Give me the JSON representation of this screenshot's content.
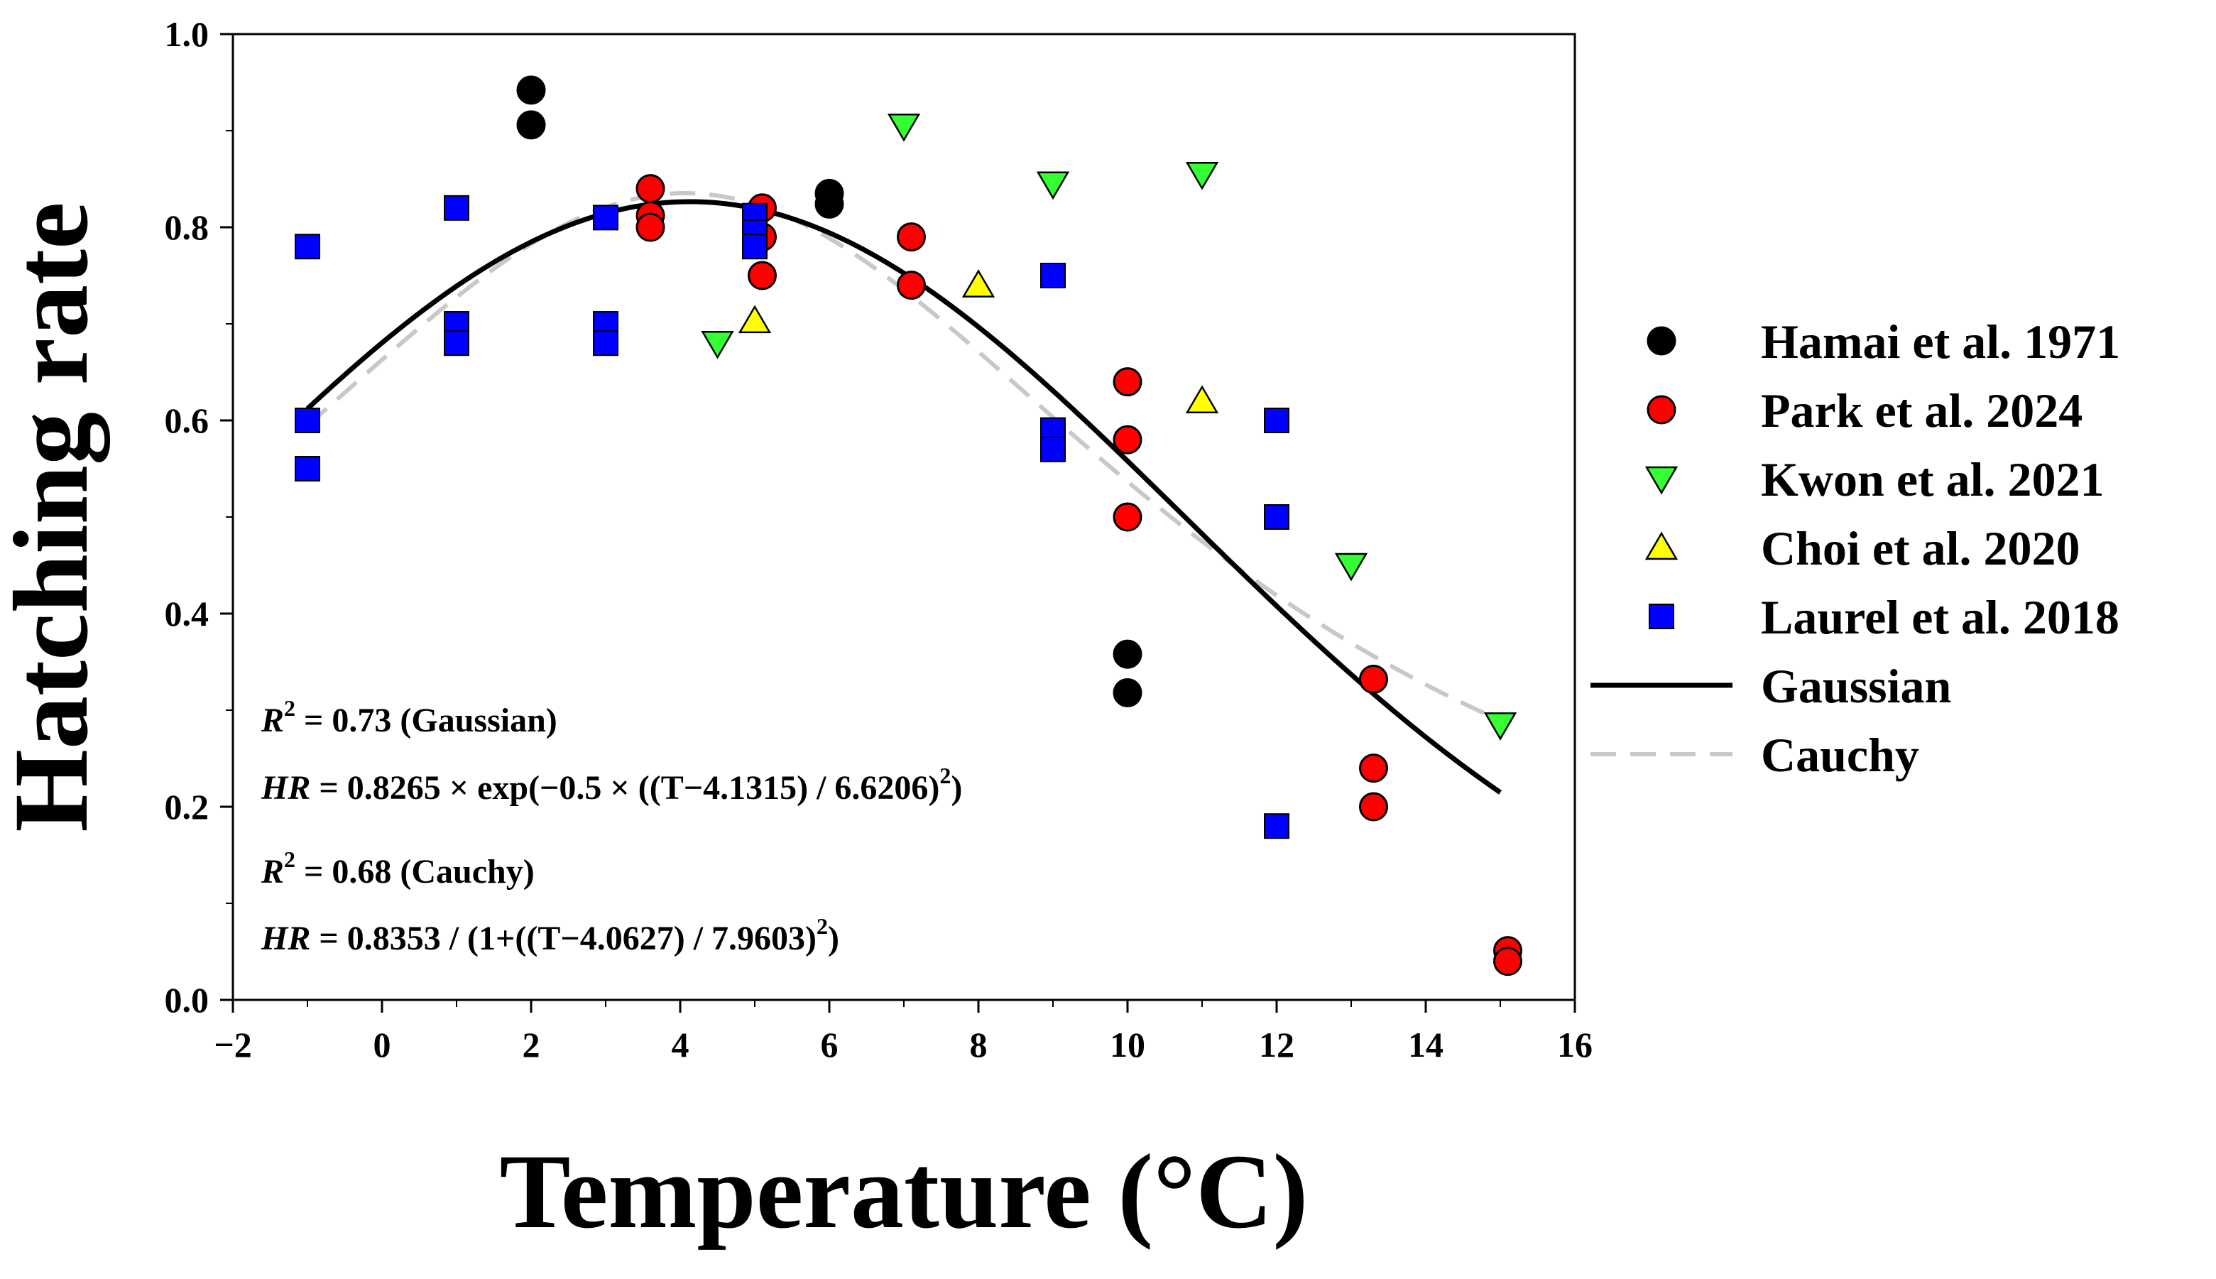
{
  "chart_data": {
    "type": "scatter",
    "xlabel": "Temperature (°C)",
    "ylabel": "Hatching rate",
    "xlim": [
      -2,
      16
    ],
    "ylim": [
      0,
      1.0
    ],
    "xticks": [
      "−2",
      "0",
      "2",
      "4",
      "6",
      "8",
      "10",
      "12",
      "14",
      "16"
    ],
    "xtick_values": [
      -2,
      0,
      2,
      4,
      6,
      8,
      10,
      12,
      14,
      16
    ],
    "yticks": [
      "0.0",
      "0.2",
      "0.4",
      "0.6",
      "0.8",
      "1.0"
    ],
    "ytick_values": [
      0,
      0.2,
      0.4,
      0.6,
      0.8,
      1.0
    ],
    "legend_position": "right",
    "series": [
      {
        "name": "Hamai et al. 1971",
        "marker": "circle",
        "color": "#000000",
        "x": [
          2,
          2,
          6,
          6,
          10,
          10
        ],
        "y": [
          0.942,
          0.906,
          0.835,
          0.824,
          0.358,
          0.318
        ]
      },
      {
        "name": "Park et al. 2024",
        "marker": "circle",
        "color": "#ff0000",
        "x": [
          3.6,
          3.6,
          3.6,
          5.1,
          5.1,
          5.1,
          7.1,
          7.1,
          10,
          10,
          10,
          13.3,
          13.3,
          13.3,
          15.1,
          15.1
        ],
        "y": [
          0.84,
          0.812,
          0.8,
          0.82,
          0.79,
          0.75,
          0.79,
          0.74,
          0.64,
          0.58,
          0.5,
          0.332,
          0.24,
          0.2,
          0.051,
          0.04
        ]
      },
      {
        "name": "Kwon et al. 2021",
        "marker": "triangle-down",
        "color": "#33ff33",
        "x": [
          4.5,
          7,
          9,
          11,
          13,
          15
        ],
        "y": [
          0.68,
          0.905,
          0.845,
          0.855,
          0.45,
          0.285
        ]
      },
      {
        "name": "Choi et al. 2020",
        "marker": "triangle-up",
        "color": "#ffff00",
        "x": [
          5,
          8,
          11
        ],
        "y": [
          0.703,
          0.74,
          0.62
        ]
      },
      {
        "name": "Laurel et al. 2018",
        "marker": "square",
        "color": "#0000ff",
        "x": [
          -1,
          -1,
          -1,
          1,
          1,
          1,
          3,
          3,
          3,
          5,
          5,
          5,
          9,
          9,
          9,
          12,
          12,
          12
        ],
        "y": [
          0.78,
          0.6,
          0.55,
          0.82,
          0.7,
          0.68,
          0.81,
          0.7,
          0.68,
          0.812,
          0.795,
          0.78,
          0.59,
          0.57,
          0.75,
          0.6,
          0.5,
          0.18
        ]
      }
    ],
    "curves": [
      {
        "name": "Gaussian",
        "style": "solid",
        "color": "#000000",
        "params": {
          "a": 0.8265,
          "t0": 4.1315,
          "b": 6.6206
        },
        "x_range": [
          -1,
          15
        ]
      },
      {
        "name": "Cauchy",
        "style": "dashed",
        "color": "#c8c8c8",
        "params": {
          "a": 0.8353,
          "t0": 4.0627,
          "b": 7.9603
        },
        "x_range": [
          -1,
          15
        ]
      }
    ],
    "annotations": {
      "gaussian_r2_value": "0.73",
      "gaussian_r2_label": "(Gaussian)",
      "gaussian_formula_prefix": "0.8265 × exp(−0.5 × ((T−4.1315) / 6.6206)",
      "cauchy_r2_value": "0.68",
      "cauchy_r2_label": "(Cauchy)",
      "cauchy_formula_prefix": "0.8353 / (1+((T−4.0627) / 7.9603)",
      "r_symbol": "R",
      "hr_symbol": "HR",
      "equals": " = ",
      "superscript_two": "2",
      "close_paren": ")"
    }
  }
}
